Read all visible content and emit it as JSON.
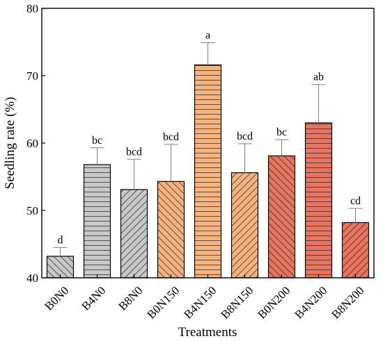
{
  "chart_data": {
    "type": "bar",
    "title": "",
    "xlabel": "Treatments",
    "ylabel": "Seedling rate (%)",
    "ylim": [
      40,
      80
    ],
    "yticks": [
      40,
      50,
      60,
      70,
      80
    ],
    "grid": false,
    "categories": [
      "B0N0",
      "B4N0",
      "B8N0",
      "B0N150",
      "B4N150",
      "B8N150",
      "B0N200",
      "B4N200",
      "B8N200"
    ],
    "values": [
      43.2,
      56.8,
      53.1,
      54.3,
      71.6,
      55.6,
      58.1,
      63.0,
      48.2
    ],
    "errors": [
      1.3,
      2.5,
      4.5,
      5.5,
      3.3,
      4.3,
      2.4,
      5.7,
      2.1
    ],
    "significance": [
      "d",
      "bc",
      "bcd",
      "bcd",
      "a",
      "bcd",
      "bc",
      "ab",
      "cd"
    ],
    "colors": [
      "#c8c8c8",
      "#c8c8c8",
      "#c8c8c8",
      "#f7b37e",
      "#f7b37e",
      "#f7b37e",
      "#e8735e",
      "#e8735e",
      "#e8735e"
    ],
    "patterns": [
      "diag-right",
      "horizontal",
      "diag-left",
      "diag-right",
      "horizontal",
      "diag-left",
      "diag-right",
      "horizontal",
      "diag-left"
    ]
  }
}
